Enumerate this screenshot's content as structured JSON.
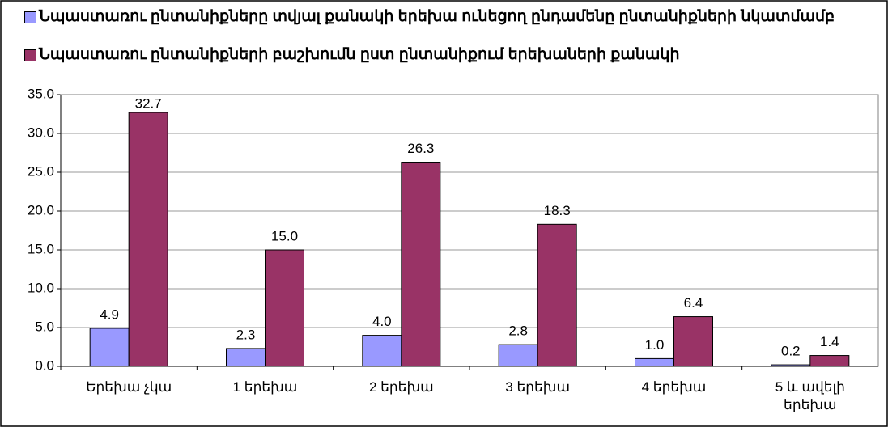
{
  "chart_data": {
    "type": "bar",
    "categories": [
      "Երեխա չկա",
      "1 երեխա",
      "2 երեխա",
      "3 երեխա",
      "4 երեխա",
      "5 և ավելի երեխա"
    ],
    "series": [
      {
        "name": "Նպաստառու ընտանիքները տվյալ քանակի երեխա ունեցող ընդամենը ընտանիքների նկատմամբ",
        "color": "#9999ff",
        "values": [
          4.9,
          2.3,
          4.0,
          2.8,
          1.0,
          0.2
        ],
        "value_labels": [
          "4.9",
          "2.3",
          "4.0",
          "2.8",
          "1.0",
          "0.2"
        ]
      },
      {
        "name": "Նպաստառու ընտանիքների բաշխումն ըստ ընտանիքում երեխաների քանակի",
        "color": "#993366",
        "values": [
          32.7,
          15.0,
          26.3,
          18.3,
          6.4,
          1.4
        ],
        "value_labels": [
          "32.7",
          "15.0",
          "26.3",
          "18.3",
          "6.4",
          "1.4"
        ]
      }
    ],
    "ylim": [
      0,
      35
    ],
    "yticks": [
      {
        "value": 0,
        "label": "0.0"
      },
      {
        "value": 5,
        "label": "5.0"
      },
      {
        "value": 10,
        "label": "10.0"
      },
      {
        "value": 15,
        "label": "15.0"
      },
      {
        "value": 20,
        "label": "20.0"
      },
      {
        "value": 25,
        "label": "25.0"
      },
      {
        "value": 30,
        "label": "30.0"
      },
      {
        "value": 35,
        "label": "35.0"
      }
    ],
    "grid": true,
    "legend": "top"
  }
}
